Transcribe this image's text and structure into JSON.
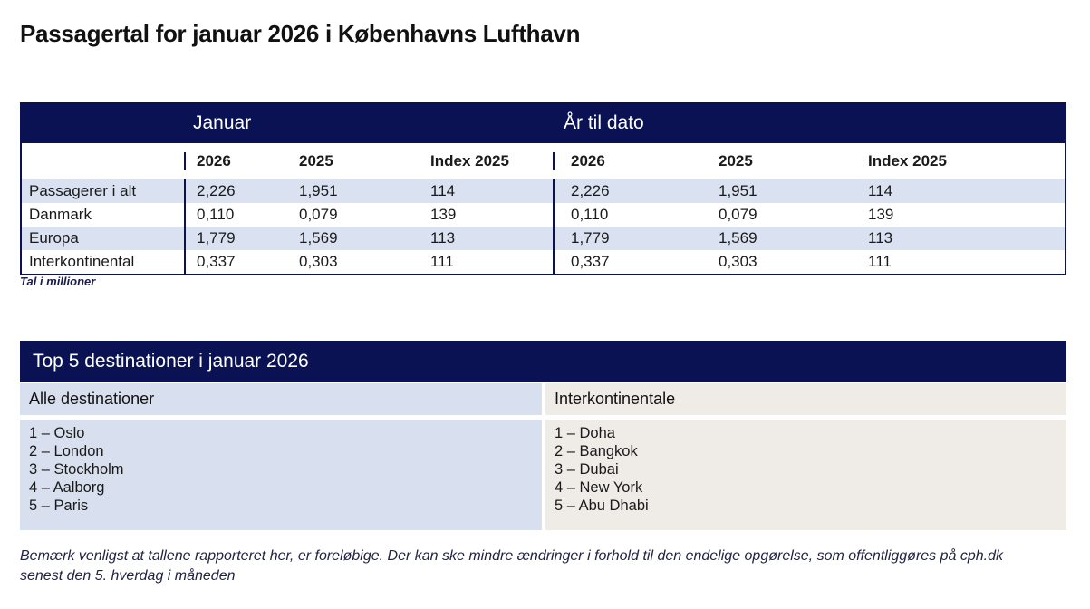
{
  "page_title": "Passagertal for januar 2026 i Københavns Lufthavn",
  "colors": {
    "brand_navy": "#0A1254",
    "row_stripe_blue": "#DAE2F1",
    "top5_left_blue": "#D8E0EF",
    "top5_right_beige": "#EFECE8"
  },
  "traffic_table": {
    "sections": [
      {
        "label": "Januar"
      },
      {
        "label": "År til dato"
      }
    ],
    "column_headers": [
      "2026",
      "2025",
      "Index 2025"
    ],
    "rows": [
      {
        "label": "Passagerer i alt",
        "januar": [
          "2,226",
          "1,951",
          "114"
        ],
        "ytd": [
          "2,226",
          "1,951",
          "114"
        ]
      },
      {
        "label": "Danmark",
        "januar": [
          "0,110",
          "0,079",
          "139"
        ],
        "ytd": [
          "0,110",
          "0,079",
          "139"
        ]
      },
      {
        "label": "Europa",
        "januar": [
          "1,779",
          "1,569",
          "113"
        ],
        "ytd": [
          "1,779",
          "1,569",
          "113"
        ]
      },
      {
        "label": "Interkontinental",
        "januar": [
          "0,337",
          "0,303",
          "111"
        ],
        "ytd": [
          "0,337",
          "0,303",
          "111"
        ]
      }
    ],
    "footnote": "Tal i millioner"
  },
  "top5": {
    "title": "Top 5 destinationer i januar 2026",
    "columns": [
      {
        "header": "Alle destinationer",
        "items": [
          "1 – Oslo",
          "2 – London",
          "3 – Stockholm",
          "4 – Aalborg",
          "5 – Paris"
        ]
      },
      {
        "header": "Interkontinentale",
        "items": [
          "1 – Doha",
          "2 – Bangkok",
          "3 – Dubai",
          "4 – New York",
          "5 – Abu Dhabi"
        ]
      }
    ]
  },
  "disclaimer": {
    "line1": "Bemærk venligst at tallene rapporteret her, er foreløbige. Der kan ske mindre ændringer i forhold til den endelige opgørelse, som offentliggøres på cph.dk",
    "line2": "senest den 5. hverdag i måneden"
  }
}
